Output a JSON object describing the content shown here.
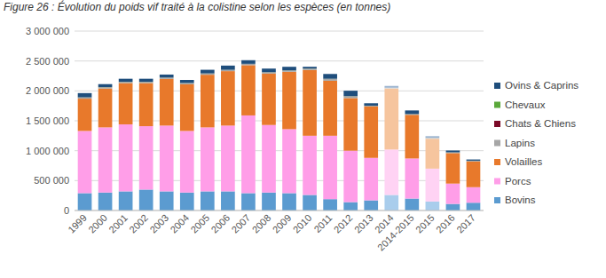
{
  "chart_data": {
    "type": "bar",
    "title": "Figure 26 : Évolution du poids vif traité à la colistine selon les espèces (en tonnes)",
    "stacked": true,
    "grid": true,
    "legend": "right",
    "categories": [
      "1999",
      "2000",
      "2001",
      "2002",
      "2003",
      "2004",
      "2005",
      "2006",
      "2007",
      "2008",
      "2009",
      "2010",
      "2011",
      "2012",
      "2013",
      "2014",
      "2014-2015",
      "2015",
      "2016",
      "2017"
    ],
    "ylim": [
      0,
      3000000
    ],
    "yticks": [
      0,
      {
        "value": 500000,
        "label": "500 000"
      },
      {
        "value": 1000000,
        "label": "1 000 000"
      },
      {
        "value": 1500000,
        "label": "1 500 000"
      },
      {
        "value": 2000000,
        "label": "2 000 000"
      },
      {
        "value": 2500000,
        "label": "2 500 000"
      },
      {
        "value": 3000000,
        "label": "3 000 000"
      }
    ],
    "series": [
      {
        "name": "Bovins",
        "color": "#5b9bd0",
        "colors": [
          "#5b9bd0",
          "#5b9bd0",
          "#5b9bd0",
          "#5b9bd0",
          "#5b9bd0",
          "#5b9bd0",
          "#5b9bd0",
          "#5b9bd0",
          "#5b9bd0",
          "#5b9bd0",
          "#5b9bd0",
          "#5b9bd0",
          "#5b9bd0",
          "#5b9bd0",
          "#5b9bd0",
          "#a9cdec",
          "#5b9bd0",
          "#a9cdec",
          "#5b9bd0",
          "#5b9bd0"
        ],
        "values": [
          290000,
          300000,
          320000,
          350000,
          320000,
          300000,
          320000,
          320000,
          290000,
          300000,
          290000,
          260000,
          190000,
          140000,
          170000,
          260000,
          200000,
          150000,
          110000,
          130000
        ]
      },
      {
        "name": "Porcs",
        "color": "#ff9ee8",
        "colors": [
          "#ff9ee8",
          "#ff9ee8",
          "#ff9ee8",
          "#ff9ee8",
          "#ff9ee8",
          "#ff9ee8",
          "#ff9ee8",
          "#ff9ee8",
          "#ff9ee8",
          "#ff9ee8",
          "#ff9ee8",
          "#ff9ee8",
          "#ff9ee8",
          "#ff9ee8",
          "#ff9ee8",
          "#ffd3f4",
          "#ff9ee8",
          "#ffd3f4",
          "#ff9ee8",
          "#ff9ee8"
        ],
        "values": [
          1040000,
          1090000,
          1120000,
          1060000,
          1100000,
          1030000,
          1070000,
          1100000,
          1300000,
          1130000,
          1070000,
          990000,
          1060000,
          860000,
          710000,
          760000,
          670000,
          550000,
          340000,
          260000
        ]
      },
      {
        "name": "Volailles",
        "color": "#e8792b",
        "colors": [
          "#e8792b",
          "#e8792b",
          "#e8792b",
          "#e8792b",
          "#e8792b",
          "#e8792b",
          "#e8792b",
          "#e8792b",
          "#e8792b",
          "#e8792b",
          "#e8792b",
          "#e8792b",
          "#e8792b",
          "#e8792b",
          "#e8792b",
          "#f6c59e",
          "#e8792b",
          "#f6c59e",
          "#e8792b",
          "#e8792b"
        ],
        "values": [
          540000,
          650000,
          690000,
          720000,
          780000,
          780000,
          880000,
          910000,
          840000,
          860000,
          960000,
          1100000,
          920000,
          880000,
          860000,
          1020000,
          730000,
          500000,
          510000,
          430000
        ]
      },
      {
        "name": "Lapins",
        "color": "#a6a6a6",
        "colors": [
          "#a6a6a6",
          "#a6a6a6",
          "#a6a6a6",
          "#a6a6a6",
          "#a6a6a6",
          "#a6a6a6",
          "#a6a6a6",
          "#a6a6a6",
          "#a6a6a6",
          "#a6a6a6",
          "#a6a6a6",
          "#a6a6a6",
          "#a6a6a6",
          "#a6a6a6",
          "#a6a6a6",
          "#d6d6d6",
          "#a6a6a6",
          "#d6d6d6",
          "#a6a6a6",
          "#a6a6a6"
        ],
        "values": [
          20000,
          20000,
          20000,
          20000,
          20000,
          20000,
          20000,
          20000,
          20000,
          20000,
          20000,
          20000,
          30000,
          30000,
          10000,
          10000,
          10000,
          10000,
          10000,
          10000
        ]
      },
      {
        "name": "Chats & Chiens",
        "color": "#7b0a28",
        "colors": [
          "#7b0a28",
          "#7b0a28",
          "#7b0a28",
          "#7b0a28",
          "#7b0a28",
          "#7b0a28",
          "#7b0a28",
          "#7b0a28",
          "#7b0a28",
          "#7b0a28",
          "#7b0a28",
          "#7b0a28",
          "#7b0a28",
          "#7b0a28",
          "#7b0a28",
          "#c08a98",
          "#7b0a28",
          "#c08a98",
          "#7b0a28",
          "#7b0a28"
        ],
        "values": [
          1000,
          1000,
          1000,
          1000,
          1000,
          1000,
          1000,
          1000,
          1000,
          1000,
          1000,
          1000,
          1000,
          1000,
          1000,
          1000,
          1000,
          1000,
          1000,
          1000
        ]
      },
      {
        "name": "Chevaux",
        "color": "#5aa83a",
        "colors": [
          "#5aa83a",
          "#5aa83a",
          "#5aa83a",
          "#5aa83a",
          "#5aa83a",
          "#5aa83a",
          "#5aa83a",
          "#5aa83a",
          "#5aa83a",
          "#5aa83a",
          "#5aa83a",
          "#5aa83a",
          "#5aa83a",
          "#5aa83a",
          "#5aa83a",
          "#add49c",
          "#5aa83a",
          "#add49c",
          "#5aa83a",
          "#5aa83a"
        ],
        "values": [
          2000,
          2000,
          2000,
          2000,
          2000,
          2000,
          2000,
          2000,
          2000,
          2000,
          2000,
          2000,
          2000,
          2000,
          2000,
          2000,
          2000,
          2000,
          2000,
          2000
        ]
      },
      {
        "name": "Ovins & Caprins",
        "color": "#1f4e7c",
        "colors": [
          "#1f4e7c",
          "#1f4e7c",
          "#1f4e7c",
          "#1f4e7c",
          "#1f4e7c",
          "#1f4e7c",
          "#1f4e7c",
          "#1f4e7c",
          "#1f4e7c",
          "#1f4e7c",
          "#1f4e7c",
          "#1f4e7c",
          "#1f4e7c",
          "#1f4e7c",
          "#1f4e7c",
          "#9db5d0",
          "#1f4e7c",
          "#9db5d0",
          "#1f4e7c",
          "#1f4e7c"
        ],
        "values": [
          70000,
          50000,
          50000,
          50000,
          50000,
          50000,
          60000,
          70000,
          60000,
          60000,
          60000,
          30000,
          80000,
          90000,
          40000,
          30000,
          60000,
          30000,
          30000,
          20000
        ]
      }
    ]
  }
}
